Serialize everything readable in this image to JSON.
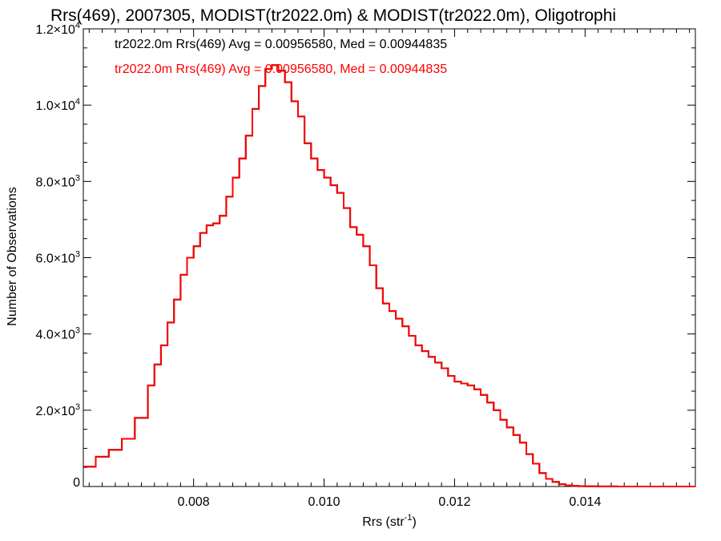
{
  "chart_data": {
    "type": "line",
    "title": "Rrs(469), 2007305, MODIST(tr2022.0m) & MODIST(tr2022.0m), Oligotrophi",
    "xlabel": "Rrs (str",
    "xlabel_sup": "-1",
    "xlabel_suffix": ")",
    "ylabel": "Number of Observations",
    "xlim": [
      0.00631,
      0.01569
    ],
    "ylim": [
      0,
      12000
    ],
    "grid": false,
    "legend_placement": "top-left",
    "x_ticks": [
      {
        "value": 0.008,
        "label": "0.008"
      },
      {
        "value": 0.01,
        "label": "0.010"
      },
      {
        "value": 0.012,
        "label": "0.012"
      },
      {
        "value": 0.014,
        "label": "0.014"
      }
    ],
    "y_ticks": [
      {
        "value": 0,
        "mantissa": "0",
        "exp": ""
      },
      {
        "value": 2000,
        "mantissa": "2.0×10",
        "exp": "3"
      },
      {
        "value": 4000,
        "mantissa": "4.0×10",
        "exp": "3"
      },
      {
        "value": 6000,
        "mantissa": "6.0×10",
        "exp": "3"
      },
      {
        "value": 8000,
        "mantissa": "8.0×10",
        "exp": "3"
      },
      {
        "value": 10000,
        "mantissa": "1.0×10",
        "exp": "4"
      },
      {
        "value": 12000,
        "mantissa": "1.2×10",
        "exp": "4"
      }
    ],
    "series": [
      {
        "name": "tr2022.0m Rrs(469) Avg = 0.00956580, Med = 0.00944835",
        "color": "#000000",
        "step": true,
        "x": [
          0.00631,
          0.0065,
          0.0067,
          0.0069,
          0.0071,
          0.0073,
          0.0074,
          0.0075,
          0.0076,
          0.0077,
          0.0078,
          0.0079,
          0.008,
          0.0081,
          0.0082,
          0.0083,
          0.0084,
          0.0085,
          0.0086,
          0.0087,
          0.0088,
          0.0089,
          0.009,
          0.0091,
          0.0092,
          0.0093,
          0.0094,
          0.0095,
          0.0096,
          0.0097,
          0.0098,
          0.0099,
          0.01,
          0.0101,
          0.0102,
          0.0103,
          0.0104,
          0.0105,
          0.0106,
          0.0107,
          0.0108,
          0.0109,
          0.011,
          0.0111,
          0.0112,
          0.0113,
          0.0114,
          0.0115,
          0.0116,
          0.0117,
          0.0118,
          0.0119,
          0.012,
          0.0121,
          0.0122,
          0.0123,
          0.0124,
          0.0125,
          0.0126,
          0.0127,
          0.0128,
          0.0129,
          0.013,
          0.0131,
          0.0132,
          0.0133,
          0.0134,
          0.0135,
          0.0136,
          0.0137,
          0.0138,
          0.0139,
          0.014,
          0.0142,
          0.0145,
          0.015,
          0.0155,
          0.01569
        ],
        "values": [
          520,
          780,
          960,
          1250,
          1800,
          2650,
          3200,
          3700,
          4300,
          4900,
          5550,
          6000,
          6300,
          6650,
          6850,
          6900,
          7100,
          7600,
          8100,
          8600,
          9200,
          9900,
          10500,
          10950,
          11050,
          10900,
          10600,
          10100,
          9700,
          9000,
          8600,
          8300,
          8100,
          7900,
          7700,
          7300,
          6800,
          6600,
          6300,
          5800,
          5200,
          4800,
          4600,
          4400,
          4200,
          3950,
          3700,
          3550,
          3400,
          3250,
          3100,
          2900,
          2750,
          2700,
          2650,
          2550,
          2400,
          2200,
          2000,
          1750,
          1550,
          1350,
          1150,
          850,
          600,
          350,
          200,
          120,
          60,
          30,
          15,
          8,
          4,
          2,
          1,
          0,
          0,
          0
        ]
      },
      {
        "name": "tr2022.0m Rrs(469) Avg = 0.00956580, Med = 0.00944835",
        "color": "#ff0000",
        "step": true,
        "x": [
          0.00631,
          0.0065,
          0.0067,
          0.0069,
          0.0071,
          0.0073,
          0.0074,
          0.0075,
          0.0076,
          0.0077,
          0.0078,
          0.0079,
          0.008,
          0.0081,
          0.0082,
          0.0083,
          0.0084,
          0.0085,
          0.0086,
          0.0087,
          0.0088,
          0.0089,
          0.009,
          0.0091,
          0.0092,
          0.0093,
          0.0094,
          0.0095,
          0.0096,
          0.0097,
          0.0098,
          0.0099,
          0.01,
          0.0101,
          0.0102,
          0.0103,
          0.0104,
          0.0105,
          0.0106,
          0.0107,
          0.0108,
          0.0109,
          0.011,
          0.0111,
          0.0112,
          0.0113,
          0.0114,
          0.0115,
          0.0116,
          0.0117,
          0.0118,
          0.0119,
          0.012,
          0.0121,
          0.0122,
          0.0123,
          0.0124,
          0.0125,
          0.0126,
          0.0127,
          0.0128,
          0.0129,
          0.013,
          0.0131,
          0.0132,
          0.0133,
          0.0134,
          0.0135,
          0.0136,
          0.0137,
          0.0138,
          0.0139,
          0.014,
          0.0142,
          0.0145,
          0.015,
          0.0155,
          0.01569
        ],
        "values": [
          520,
          780,
          960,
          1250,
          1800,
          2650,
          3200,
          3700,
          4300,
          4900,
          5550,
          6000,
          6300,
          6650,
          6850,
          6900,
          7100,
          7600,
          8100,
          8600,
          9200,
          9900,
          10500,
          10950,
          11050,
          10900,
          10600,
          10100,
          9700,
          9000,
          8600,
          8300,
          8100,
          7900,
          7700,
          7300,
          6800,
          6600,
          6300,
          5800,
          5200,
          4800,
          4600,
          4400,
          4200,
          3950,
          3700,
          3550,
          3400,
          3250,
          3100,
          2900,
          2750,
          2700,
          2650,
          2550,
          2400,
          2200,
          2000,
          1750,
          1550,
          1350,
          1150,
          850,
          600,
          350,
          200,
          120,
          60,
          30,
          15,
          8,
          4,
          2,
          1,
          0,
          0,
          0
        ]
      }
    ]
  }
}
